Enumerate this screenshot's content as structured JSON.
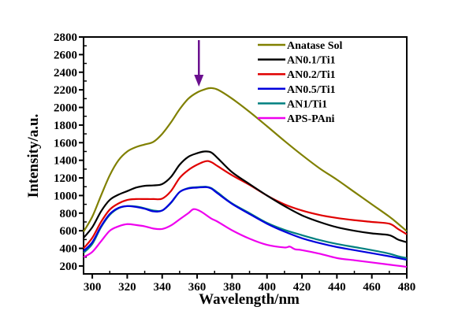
{
  "chart_data": {
    "type": "line",
    "title": "",
    "xlabel": "Wavelength/nm",
    "ylabel": "Intensity/a.u.",
    "xlim": [
      295,
      480
    ],
    "ylim": [
      110,
      2800
    ],
    "xticks": [
      300,
      320,
      340,
      360,
      380,
      400,
      420,
      440,
      460,
      480
    ],
    "yticks": [
      200,
      400,
      600,
      800,
      1000,
      1200,
      1400,
      1600,
      1800,
      2000,
      2200,
      2400,
      2600,
      2800
    ],
    "grid": false,
    "legend_position": "top-right",
    "annotation": {
      "type": "arrow",
      "x": 361,
      "label": "",
      "color": "#6a0f8e"
    },
    "series": [
      {
        "name": "Anatase Sol",
        "color": "#808000",
        "x": [
          295,
          300,
          305,
          310,
          315,
          320,
          325,
          330,
          335,
          340,
          345,
          350,
          355,
          360,
          365,
          368,
          372,
          380,
          390,
          400,
          410,
          420,
          430,
          440,
          450,
          460,
          470,
          475,
          480
        ],
        "y": [
          590,
          760,
          1000,
          1230,
          1400,
          1500,
          1550,
          1580,
          1610,
          1700,
          1830,
          1980,
          2100,
          2170,
          2210,
          2220,
          2200,
          2100,
          1950,
          1787,
          1620,
          1460,
          1310,
          1180,
          1040,
          900,
          760,
          680,
          595
        ]
      },
      {
        "name": "AN0.1/Ti1",
        "color": "#000000",
        "x": [
          295,
          300,
          305,
          310,
          315,
          320,
          325,
          330,
          335,
          340,
          345,
          350,
          355,
          360,
          364,
          368,
          372,
          380,
          390,
          400,
          410,
          420,
          430,
          440,
          450,
          460,
          470,
          475,
          480
        ],
        "y": [
          520,
          640,
          820,
          950,
          1010,
          1050,
          1090,
          1110,
          1115,
          1130,
          1210,
          1350,
          1440,
          1480,
          1500,
          1490,
          1420,
          1265,
          1130,
          1000,
          880,
          775,
          700,
          640,
          600,
          570,
          550,
          500,
          470
        ]
      },
      {
        "name": "AN0.2/Ti1",
        "color": "#e00000",
        "x": [
          295,
          300,
          305,
          310,
          315,
          320,
          325,
          330,
          335,
          340,
          345,
          350,
          355,
          360,
          365,
          368,
          372,
          380,
          390,
          400,
          410,
          420,
          430,
          440,
          450,
          460,
          470,
          475,
          480
        ],
        "y": [
          400,
          520,
          700,
          840,
          910,
          950,
          960,
          960,
          960,
          965,
          1050,
          1200,
          1290,
          1350,
          1390,
          1380,
          1330,
          1230,
          1120,
          1000,
          900,
          830,
          780,
          745,
          720,
          700,
          680,
          620,
          560
        ]
      },
      {
        "name": "AN0.5/Ti1",
        "color": "#0000dd",
        "x": [
          295,
          300,
          305,
          310,
          315,
          320,
          325,
          330,
          335,
          340,
          345,
          350,
          355,
          360,
          365,
          368,
          372,
          380,
          390,
          400,
          410,
          420,
          430,
          440,
          450,
          460,
          470,
          475,
          480
        ],
        "y": [
          370,
          470,
          650,
          790,
          860,
          880,
          870,
          850,
          820,
          830,
          920,
          1040,
          1080,
          1090,
          1095,
          1080,
          1020,
          905,
          790,
          680,
          590,
          515,
          460,
          415,
          380,
          345,
          310,
          290,
          270
        ]
      },
      {
        "name": "AN1/Ti1",
        "color": "#008080",
        "x": [
          295,
          300,
          305,
          310,
          315,
          320,
          325,
          330,
          335,
          340,
          345,
          350,
          355,
          360,
          365,
          368,
          372,
          380,
          390,
          400,
          410,
          420,
          430,
          440,
          450,
          460,
          470,
          475,
          480
        ],
        "y": [
          350,
          450,
          640,
          780,
          855,
          880,
          875,
          855,
          830,
          830,
          915,
          1040,
          1085,
          1095,
          1100,
          1085,
          1030,
          910,
          800,
          690,
          610,
          550,
          495,
          450,
          415,
          380,
          340,
          310,
          290
        ]
      },
      {
        "name": "APS-PAni",
        "color": "#ee00ee",
        "x": [
          295,
          300,
          305,
          310,
          315,
          320,
          325,
          330,
          335,
          340,
          345,
          350,
          355,
          358,
          362,
          368,
          372,
          380,
          390,
          400,
          410,
          413,
          416,
          420,
          430,
          440,
          450,
          460,
          470,
          480
        ],
        "y": [
          300,
          360,
          480,
          600,
          650,
          675,
          665,
          650,
          625,
          620,
          660,
          730,
          800,
          845,
          820,
          740,
          700,
          605,
          510,
          440,
          410,
          420,
          390,
          380,
          340,
          290,
          265,
          240,
          215,
          190
        ]
      }
    ]
  }
}
